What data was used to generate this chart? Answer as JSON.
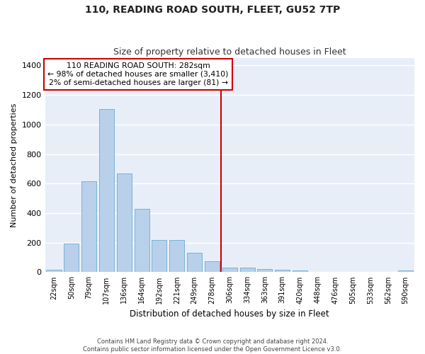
{
  "title": "110, READING ROAD SOUTH, FLEET, GU52 7TP",
  "subtitle": "Size of property relative to detached houses in Fleet",
  "xlabel": "Distribution of detached houses by size in Fleet",
  "ylabel": "Number of detached properties",
  "bar_labels": [
    "22sqm",
    "50sqm",
    "79sqm",
    "107sqm",
    "136sqm",
    "164sqm",
    "192sqm",
    "221sqm",
    "249sqm",
    "278sqm",
    "306sqm",
    "334sqm",
    "363sqm",
    "391sqm",
    "420sqm",
    "448sqm",
    "476sqm",
    "505sqm",
    "533sqm",
    "562sqm",
    "590sqm"
  ],
  "bar_values": [
    18,
    195,
    615,
    1105,
    670,
    430,
    220,
    220,
    130,
    75,
    30,
    30,
    20,
    15,
    10,
    0,
    0,
    0,
    0,
    0,
    10
  ],
  "bar_color": "#b8d0ea",
  "bar_edge_color": "#6aabd2",
  "background_color": "#e8eef8",
  "grid_color": "#ffffff",
  "vline_x_index": 9.5,
  "annotation_text": "110 READING ROAD SOUTH: 282sqm\n← 98% of detached houses are smaller (3,410)\n2% of semi-detached houses are larger (81) →",
  "annotation_box_color": "#cc0000",
  "vline_color": "#cc0000",
  "ylim": [
    0,
    1450
  ],
  "yticks": [
    0,
    200,
    400,
    600,
    800,
    1000,
    1200,
    1400
  ],
  "footer1": "Contains HM Land Registry data © Crown copyright and database right 2024.",
  "footer2": "Contains public sector information licensed under the Open Government Licence v3.0."
}
